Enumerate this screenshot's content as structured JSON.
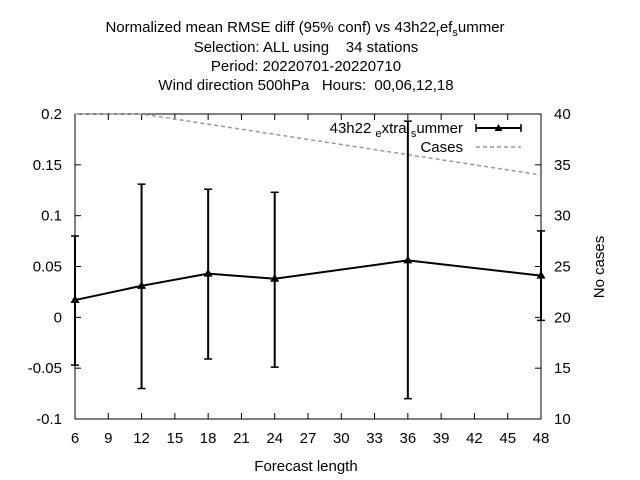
{
  "title_lines": [
    "Normalized mean RMSE diff (95% conf) vs 43h22_ref_summer",
    "Selection: ALL using    34 stations",
    "Period: 20220701-20220710",
    "Wind direction 500hPa   Hours:  00,06,12,18"
  ],
  "chart_data": {
    "type": "line",
    "xlabel": "Forecast length",
    "ylabel": "",
    "y2label": "No cases",
    "xlim": [
      6,
      48
    ],
    "ylim": [
      -0.1,
      0.2
    ],
    "y2lim": [
      10,
      40
    ],
    "x_ticks": [
      6,
      9,
      12,
      15,
      18,
      21,
      24,
      27,
      30,
      33,
      36,
      39,
      42,
      45,
      48
    ],
    "y_ticks": [
      -0.1,
      -0.05,
      0,
      0.05,
      0.1,
      0.15,
      0.2
    ],
    "y_tick_labels": [
      "-0.1",
      "-0.05",
      "0",
      "0.05",
      "0.1",
      "0.15",
      "0.2"
    ],
    "y2_ticks": [
      10,
      15,
      20,
      25,
      30,
      35,
      40
    ],
    "grid": false,
    "legend_position": "top-right",
    "series": [
      {
        "name": "43h22_extra_summer",
        "color": "#000000",
        "marker": "triangle",
        "axis": "y",
        "x": [
          6,
          12,
          18,
          24,
          36,
          48
        ],
        "y": [
          0.017,
          0.031,
          0.043,
          0.038,
          0.056,
          0.041
        ],
        "err_low": [
          -0.047,
          -0.07,
          -0.041,
          -0.049,
          -0.08,
          -0.003
        ],
        "err_high": [
          0.08,
          0.131,
          0.126,
          0.123,
          0.193,
          0.085
        ]
      },
      {
        "name": "Cases",
        "color": "#999999",
        "style": "dashed",
        "axis": "y2",
        "x": [
          6,
          12,
          18,
          24,
          36,
          48
        ],
        "y": [
          40,
          40,
          39,
          38,
          36,
          34
        ]
      }
    ]
  }
}
